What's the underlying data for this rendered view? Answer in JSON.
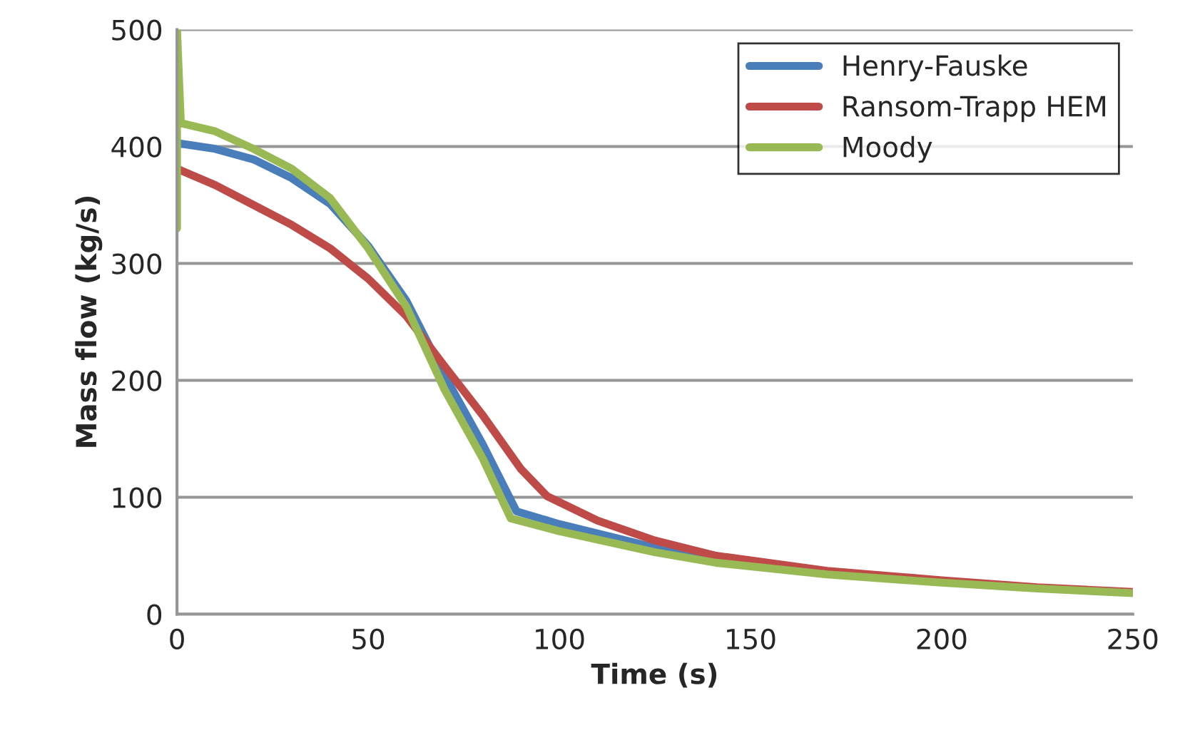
{
  "chart_data": {
    "type": "line",
    "xlabel": "Time (s)",
    "ylabel": "Mass flow (kg/s)",
    "xlim": [
      0,
      250
    ],
    "xticks": [
      0,
      50,
      100,
      150,
      200,
      250
    ],
    "ylim": [
      0,
      500
    ],
    "yticks": [
      0,
      100,
      200,
      300,
      400,
      500
    ],
    "grid": "y",
    "legend": "top right",
    "marker": "none",
    "line_style": "solid",
    "series": [
      {
        "name": "Henry-Fauske",
        "color": "#4a7ebb",
        "x": [
          0,
          10,
          20,
          30,
          40,
          50,
          60,
          70,
          80,
          88.8,
          100,
          125,
          150,
          175
        ],
        "values": [
          403,
          398,
          389,
          373,
          351,
          315,
          268,
          204,
          145,
          88,
          77,
          57,
          43,
          34
        ]
      },
      {
        "name": "Ransom-Trapp HEM",
        "color": "#be4b48",
        "x": [
          0,
          10,
          20,
          30,
          40,
          50,
          60,
          70,
          80,
          90,
          96.8,
          110,
          125,
          141,
          170,
          200,
          225,
          250
        ],
        "values": [
          381,
          367,
          350,
          333,
          313,
          287,
          255,
          212,
          170,
          124,
          101,
          80,
          63,
          50,
          37,
          29,
          23,
          19
        ]
      },
      {
        "name": "Moody",
        "color": "#98b954",
        "x": [
          0,
          0,
          1,
          10,
          20,
          30,
          40,
          50,
          60,
          70,
          80,
          87.3,
          100,
          125,
          141,
          170,
          200,
          225,
          250
        ],
        "values": [
          330,
          500,
          420,
          413,
          398,
          381,
          356,
          313,
          263,
          192,
          133,
          82,
          71,
          53,
          44,
          34,
          27,
          22,
          18
        ]
      }
    ]
  }
}
